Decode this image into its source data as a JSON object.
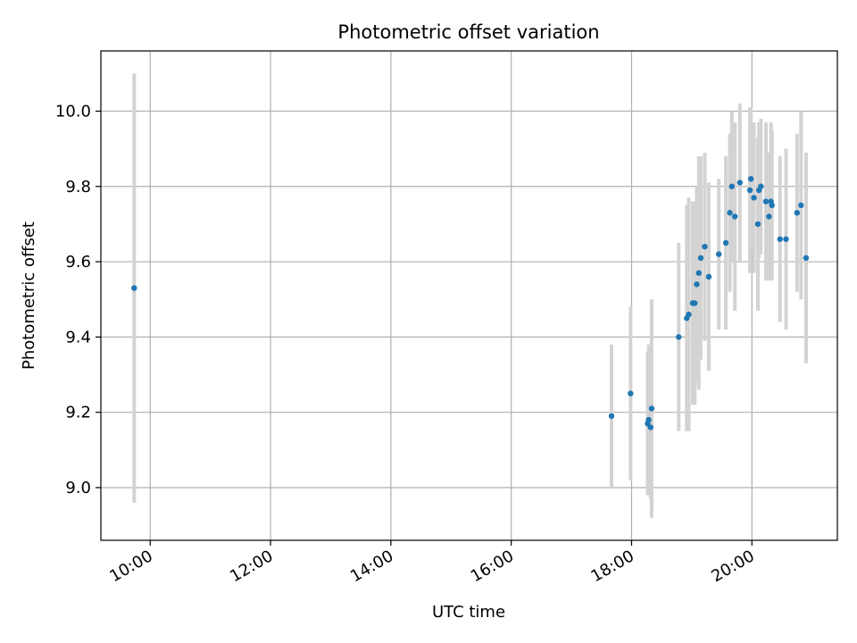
{
  "chart_data": {
    "type": "scatter",
    "title": "Photometric offset variation",
    "xlabel": "UTC time",
    "ylabel": "Photometric offset",
    "x_tick_labels": [
      "10:00",
      "12:00",
      "14:00",
      "16:00",
      "18:00",
      "20:00"
    ],
    "y_tick_labels": [
      "9.0",
      "9.2",
      "9.4",
      "9.6",
      "9.8",
      "10.0"
    ],
    "x_ticks_hours": [
      10,
      12,
      14,
      16,
      18,
      20
    ],
    "y_ticks": [
      9.0,
      9.2,
      9.4,
      9.6,
      9.8,
      10.0
    ],
    "xlim_hours": [
      9.18,
      21.42
    ],
    "ylim": [
      8.86,
      10.16
    ],
    "grid": true,
    "colors": {
      "marker": "#1f77b4",
      "errorbar": "#d3d3d3",
      "grid": "#b0b0b0"
    },
    "points": [
      {
        "x": "09:44",
        "y": 9.53,
        "err": 0.57
      },
      {
        "x": "17:40",
        "y": 9.19,
        "err": 0.19
      },
      {
        "x": "17:59",
        "y": 9.25,
        "err": 0.23
      },
      {
        "x": "18:16",
        "y": 9.17,
        "err": 0.19
      },
      {
        "x": "18:17",
        "y": 9.18,
        "err": 0.2
      },
      {
        "x": "18:19",
        "y": 9.16,
        "err": 0.19
      },
      {
        "x": "18:20",
        "y": 9.21,
        "err": 0.29
      },
      {
        "x": "18:47",
        "y": 9.4,
        "err": 0.25
      },
      {
        "x": "18:55",
        "y": 9.45,
        "err": 0.3
      },
      {
        "x": "18:57",
        "y": 9.46,
        "err": 0.31
      },
      {
        "x": "19:01",
        "y": 9.49,
        "err": 0.27
      },
      {
        "x": "19:03",
        "y": 9.49,
        "err": 0.27
      },
      {
        "x": "19:05",
        "y": 9.54,
        "err": 0.26
      },
      {
        "x": "19:07",
        "y": 9.57,
        "err": 0.31
      },
      {
        "x": "19:09",
        "y": 9.61,
        "err": 0.27
      },
      {
        "x": "19:13",
        "y": 9.64,
        "err": 0.25
      },
      {
        "x": "19:17",
        "y": 9.56,
        "err": 0.25
      },
      {
        "x": "19:27",
        "y": 9.62,
        "err": 0.2
      },
      {
        "x": "19:34",
        "y": 9.65,
        "err": 0.23
      },
      {
        "x": "19:38",
        "y": 9.73,
        "err": 0.21
      },
      {
        "x": "19:40",
        "y": 9.8,
        "err": 0.2
      },
      {
        "x": "19:43",
        "y": 9.72,
        "err": 0.25
      },
      {
        "x": "19:48",
        "y": 9.81,
        "err": 0.21
      },
      {
        "x": "19:58",
        "y": 9.79,
        "err": 0.22
      },
      {
        "x": "19:59",
        "y": 9.82,
        "err": 0.19
      },
      {
        "x": "20:02",
        "y": 9.77,
        "err": 0.2
      },
      {
        "x": "20:06",
        "y": 9.7,
        "err": 0.23
      },
      {
        "x": "20:07",
        "y": 9.79,
        "err": 0.18
      },
      {
        "x": "20:09",
        "y": 9.8,
        "err": 0.18
      },
      {
        "x": "20:14",
        "y": 9.76,
        "err": 0.21
      },
      {
        "x": "20:17",
        "y": 9.72,
        "err": 0.17
      },
      {
        "x": "20:19",
        "y": 9.76,
        "err": 0.21
      },
      {
        "x": "20:20",
        "y": 9.75,
        "err": 0.2
      },
      {
        "x": "20:28",
        "y": 9.66,
        "err": 0.22
      },
      {
        "x": "20:34",
        "y": 9.66,
        "err": 0.24
      },
      {
        "x": "20:45",
        "y": 9.73,
        "err": 0.21
      },
      {
        "x": "20:49",
        "y": 9.75,
        "err": 0.25
      },
      {
        "x": "20:54",
        "y": 9.61,
        "err": 0.28
      }
    ]
  }
}
